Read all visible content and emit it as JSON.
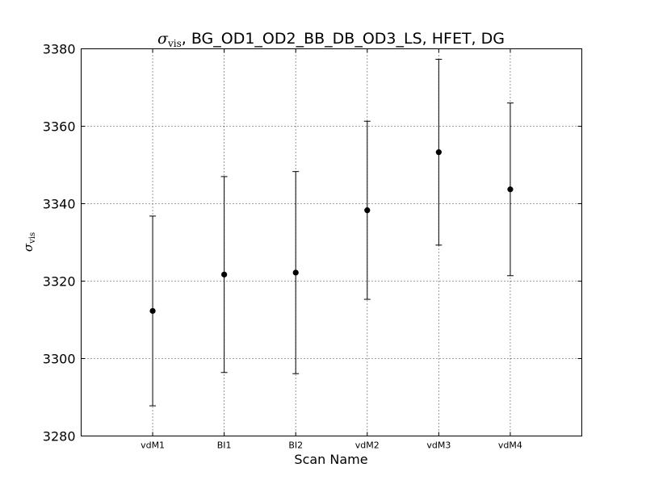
{
  "chart_data": {
    "type": "scatter",
    "title": {
      "symbol": "σ",
      "subscript": "vis",
      "text": ", BG_OD1_OD2_BB_DB_OD3_LS, HFET, DG"
    },
    "xlabel": "Scan Name",
    "ylabel": {
      "symbol": "σ",
      "subscript": "vis"
    },
    "categories": [
      "vdM1",
      "BI1",
      "BI2",
      "vdM2",
      "vdM3",
      "vdM4"
    ],
    "values": [
      3312.3,
      3321.7,
      3322.2,
      3338.3,
      3353.3,
      3343.7
    ],
    "errors": [
      24.5,
      25.3,
      26.1,
      23.0,
      24.0,
      22.3
    ],
    "ylim": [
      3280,
      3380
    ],
    "yticks": [
      "3280",
      "3300",
      "3320",
      "3340",
      "3360",
      "3380"
    ],
    "grid": true,
    "marker_color": "#000000"
  }
}
